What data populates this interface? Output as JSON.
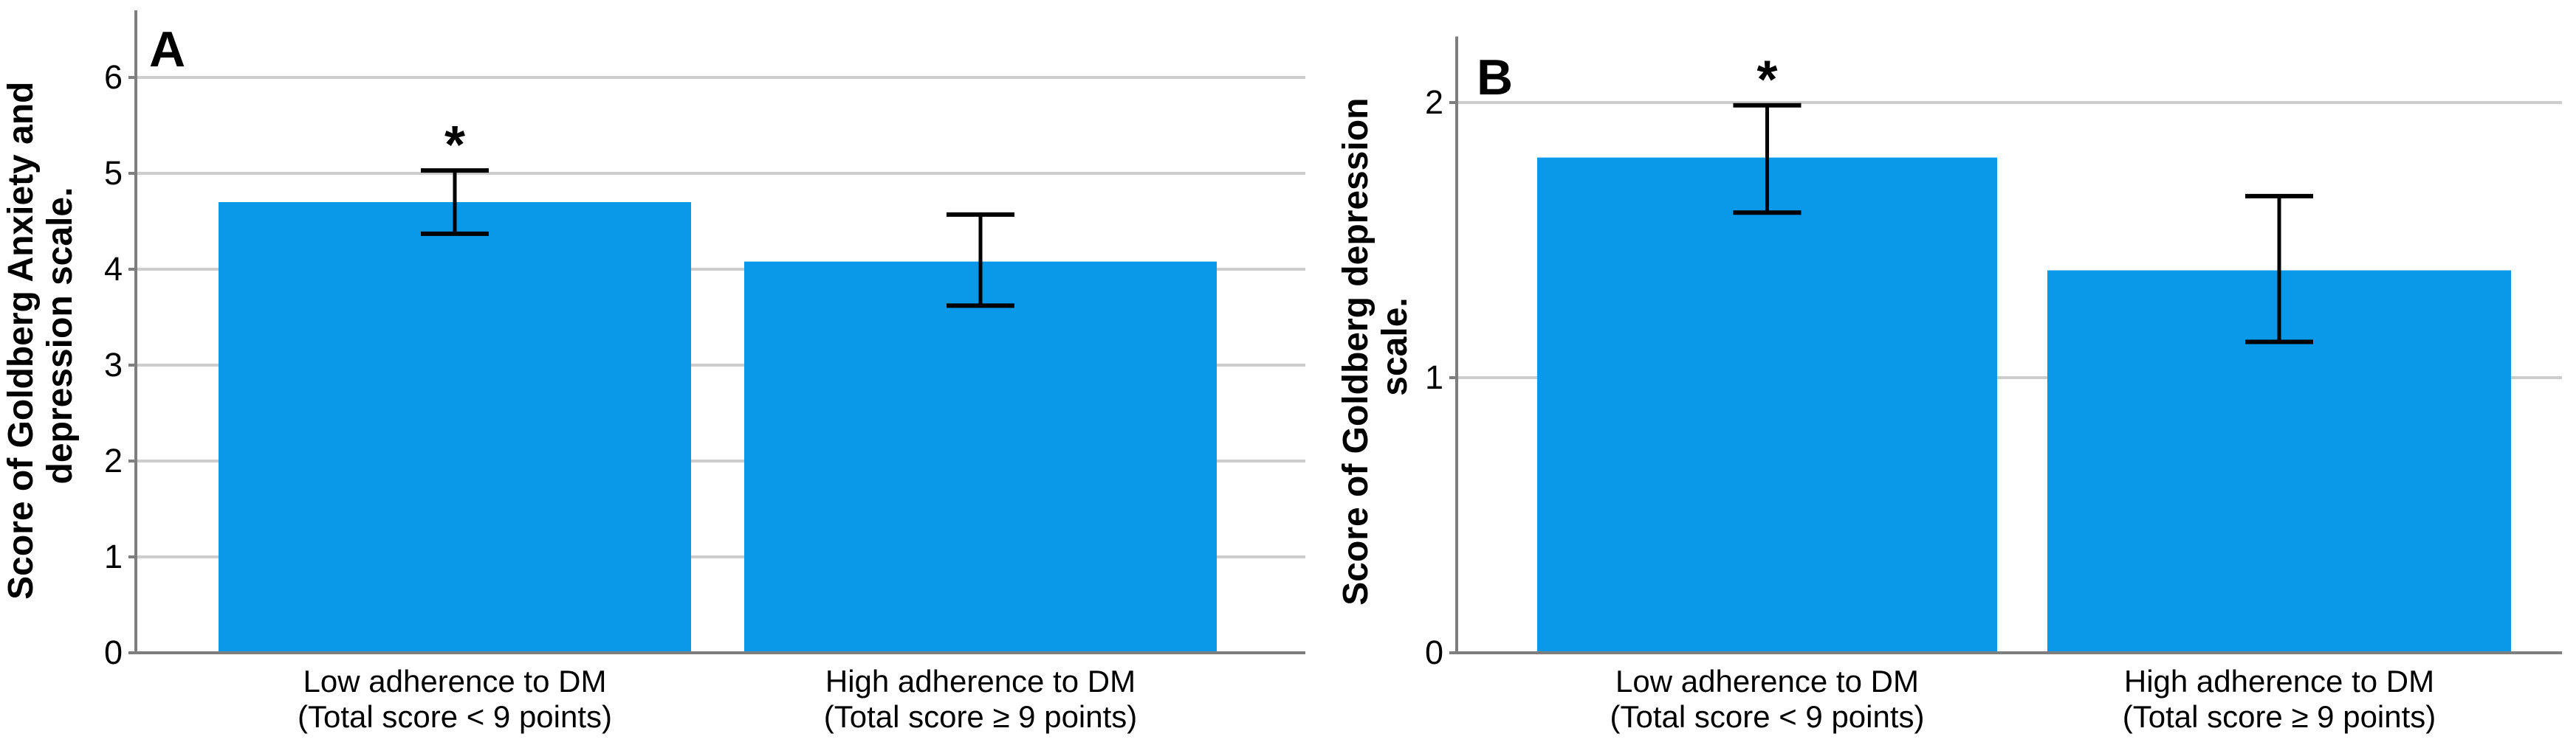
{
  "figure": {
    "background": "#FFFFFF",
    "bar_color": "#0A99E8",
    "grid_color": "#CDCDCD",
    "axis_color": "#7E7E7E",
    "error_bar_color": "#000000",
    "text_color": "#000000"
  },
  "chart_data": [
    {
      "type": "bar",
      "panel_letter": "A",
      "title": "",
      "ylabel": "Score of Goldberg Anxiety and depression scale.",
      "ylabel_lines": [
        "Score of Goldberg Anxiety and",
        "depression scale."
      ],
      "xlabel": "",
      "categories": [
        [
          "Low adherence to DM",
          "(Total score < 9 points)"
        ],
        [
          "High adherence to DM",
          "(Total score ≥ 9 points)"
        ]
      ],
      "values": [
        4.7,
        4.08
      ],
      "error_low": [
        4.37,
        3.62
      ],
      "error_high": [
        5.03,
        4.57
      ],
      "significance": [
        "*",
        ""
      ],
      "yticks": [
        0,
        1,
        2,
        3,
        4,
        5,
        6
      ],
      "ylim": [
        0,
        6.7
      ],
      "grid": true,
      "legend": null
    },
    {
      "type": "bar",
      "panel_letter": "B",
      "title": "",
      "ylabel": "Score of Goldberg depression scale.",
      "ylabel_lines": [
        "Score of Goldberg depression",
        "scale."
      ],
      "xlabel": "",
      "categories": [
        [
          "Low adherence to DM",
          "(Total score < 9 points)"
        ],
        [
          "High adherence to DM",
          "(Total score ≥ 9 points)"
        ]
      ],
      "values": [
        1.8,
        1.39
      ],
      "error_low": [
        1.6,
        1.13
      ],
      "error_high": [
        1.99,
        1.66
      ],
      "significance": [
        "*",
        ""
      ],
      "yticks": [
        0,
        1,
        2
      ],
      "ylim": [
        0,
        2.24
      ],
      "grid": true,
      "legend": null
    }
  ]
}
